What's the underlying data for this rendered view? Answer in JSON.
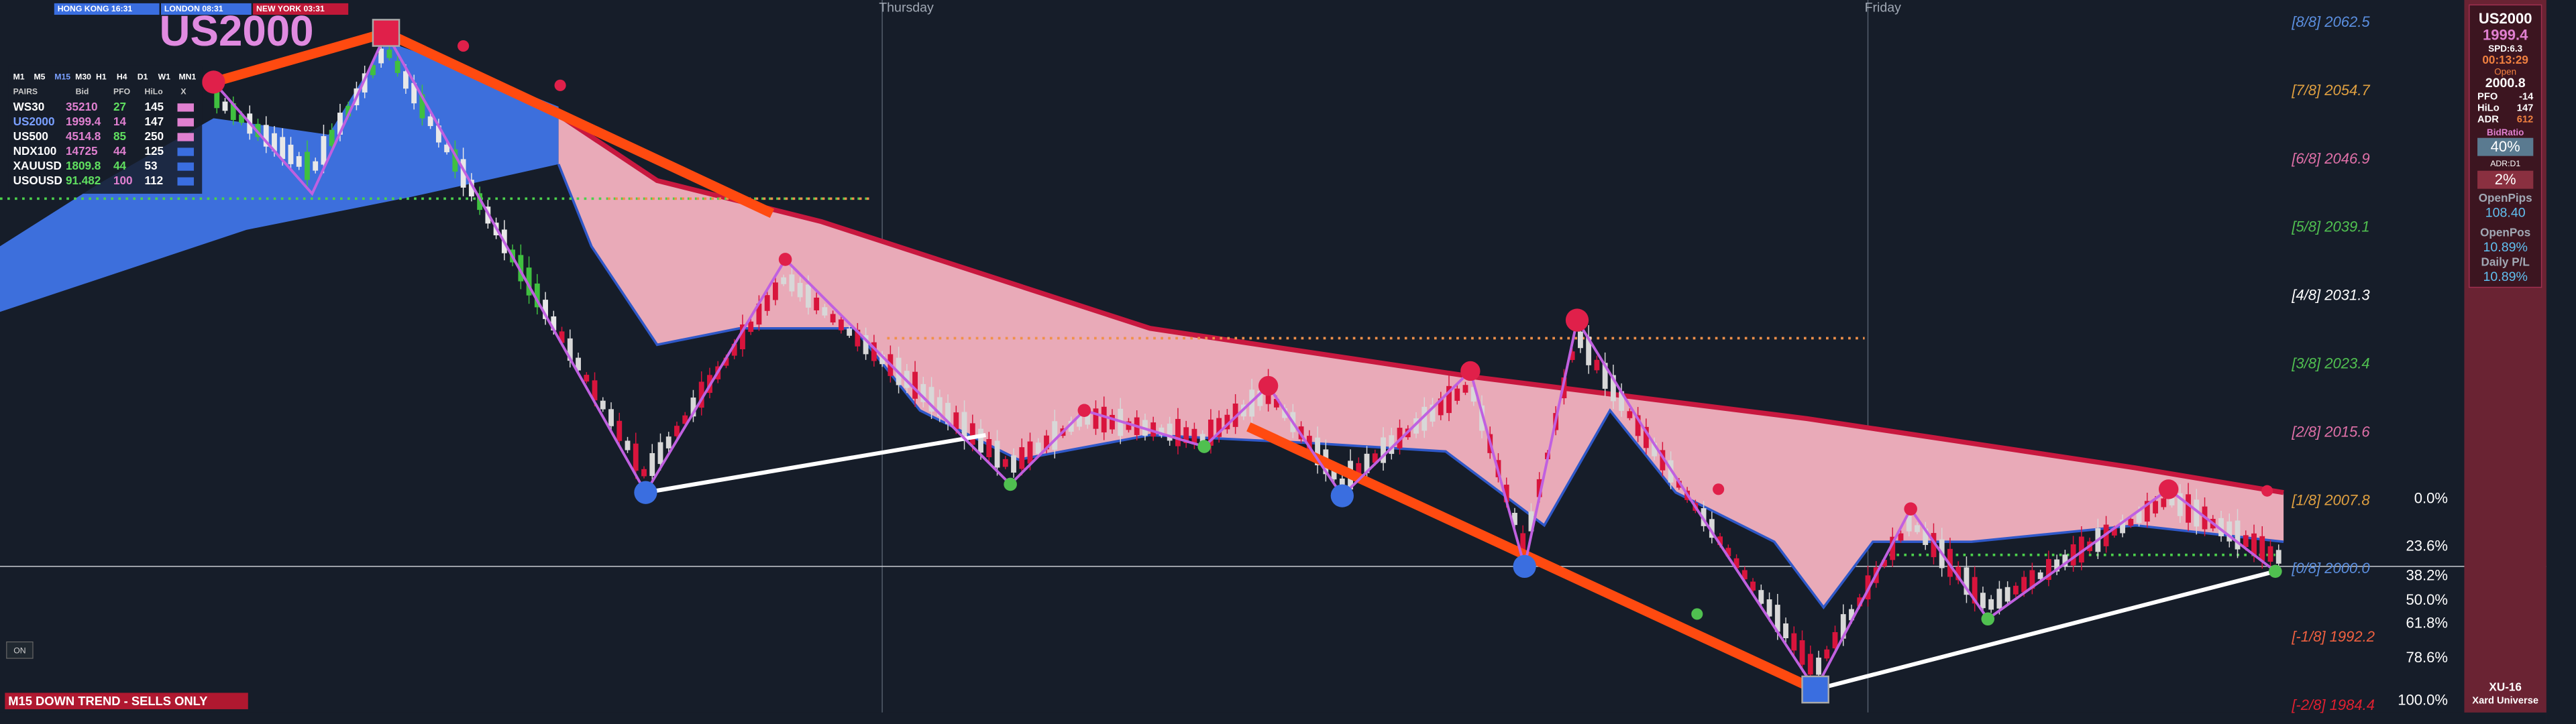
{
  "sessions": [
    "HONG KONG 16:31",
    "LONDON 08:31",
    "NEW YORK 03:31"
  ],
  "title": "US2000",
  "days": [
    "Thursday",
    "Friday"
  ],
  "murrey": [
    "[8/8] 2062.5",
    "[7/8] 2054.7",
    "[6/8] 2046.9",
    "[5/8] 2039.1",
    "[4/8] 2031.3",
    "[3/8] 2023.4",
    "[2/8] 2015.6",
    "[1/8] 2007.8",
    "[0/8] 2000.0",
    "[-1/8] 1992.2",
    "[-2/8] 1984.4"
  ],
  "fib": [
    "0.0%",
    "23.6%",
    "38.2%",
    "50.0%",
    "61.8%",
    "78.6%",
    "100.0%"
  ],
  "trend_banner": "M15  DOWN TREND - SELLS ONLY",
  "button": "ON",
  "panel": {
    "timeframes": [
      "M1",
      "M5",
      "M15",
      "M30",
      "H1",
      "H4",
      "D1",
      "W1",
      "MN1"
    ],
    "headers": [
      "PAIRS",
      "Bid",
      "PFO",
      "HiLo",
      "X"
    ],
    "rows": [
      [
        "WS30",
        "35210",
        "27",
        "145"
      ],
      [
        "US2000",
        "1999.4",
        "14",
        "147"
      ],
      [
        "US500",
        "4514.8",
        "85",
        "250"
      ],
      [
        "NDX100",
        "14725",
        "44",
        "125"
      ],
      [
        "XAUUSD",
        "1809.8",
        "44",
        "53"
      ],
      [
        "USOUSD",
        "91.482",
        "100",
        "112"
      ]
    ]
  },
  "info": {
    "symbol": "US2000",
    "bid": "1999.4",
    "spread": "SPD:6.3",
    "timer": "00:13:29",
    "open_label": "Open",
    "open": "2000.8",
    "stats": [
      [
        "PFO",
        "-14"
      ],
      [
        "HiLo",
        "147"
      ],
      [
        "ADR",
        "612"
      ]
    ],
    "bid_ratio_label": "BidRatio",
    "bid_ratio": "40%",
    "adr_label": "ADR:D1",
    "adr": "2%",
    "open_pips_label": "OpenPips",
    "open_pips": "108.40",
    "open_pos_label": "OpenPos",
    "open_pos": "10.89%",
    "daily_label": "Daily P/L",
    "daily": "10.89%",
    "brand": "XU-16",
    "brand_name": "Xard Universe"
  }
}
